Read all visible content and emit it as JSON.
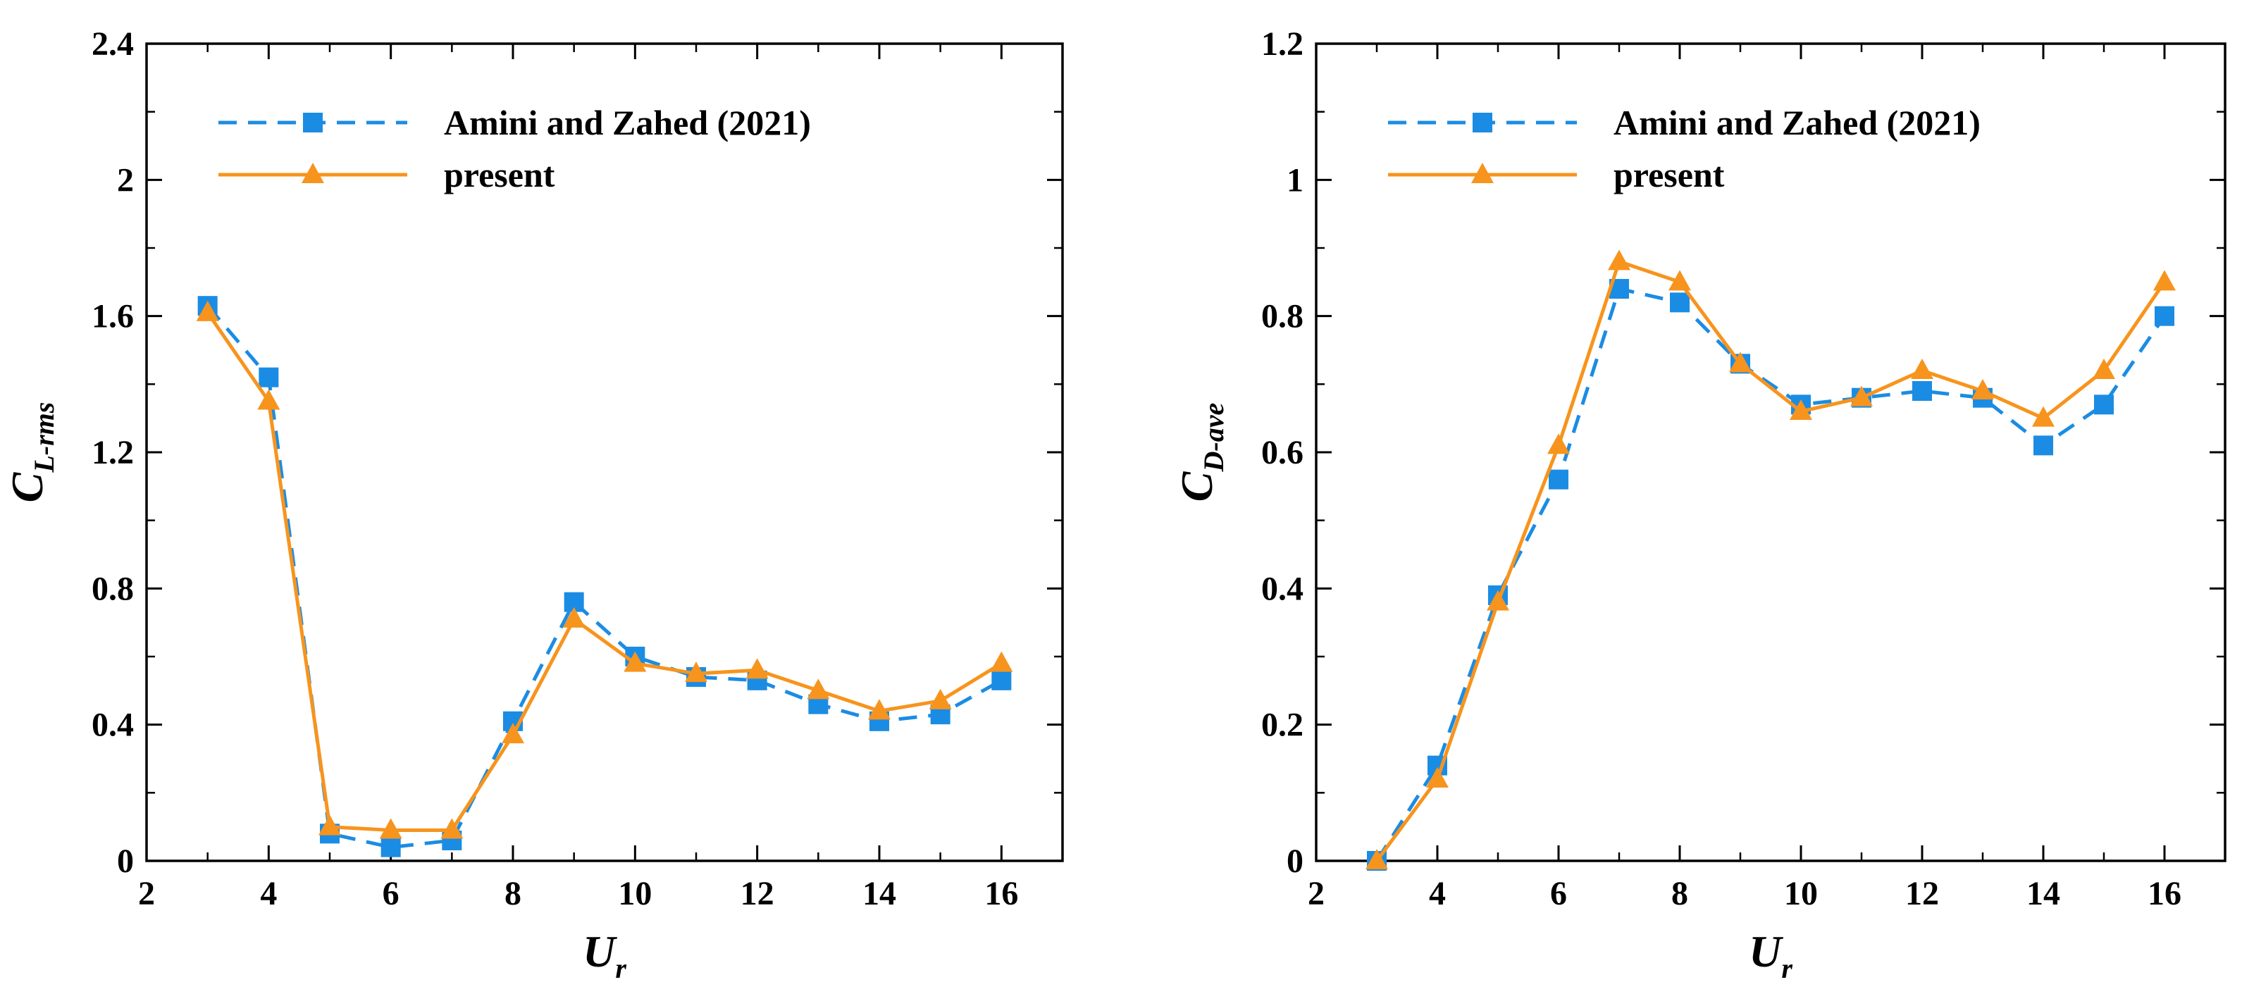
{
  "chart_data": [
    {
      "type": "line",
      "xlabel": "U",
      "xlabel_sub": "r",
      "ylabel": "C",
      "ylabel_sub": "L-rms",
      "xlim": [
        2,
        17
      ],
      "ylim": [
        0,
        2.4
      ],
      "xticks": [
        2,
        4,
        6,
        8,
        10,
        12,
        14,
        16
      ],
      "xtick_labels": [
        "2",
        "4",
        "6",
        "8",
        "10",
        "12",
        "14",
        "16"
      ],
      "yticks": [
        0,
        0.4,
        0.8,
        1.2,
        1.6,
        2,
        2.4
      ],
      "ytick_labels": [
        "0",
        "0.4",
        "0.8",
        "1.2",
        "1.6",
        "2",
        "2.4"
      ],
      "legend_position": "top-left",
      "series": [
        {
          "name": "Amini and Zahed (2021)",
          "style": "dashed",
          "marker": "square",
          "color": "#1b8ce3",
          "x": [
            3,
            4,
            5,
            6,
            7,
            8,
            9,
            10,
            11,
            12,
            13,
            14,
            15,
            16
          ],
          "y": [
            1.63,
            1.42,
            0.08,
            0.04,
            0.06,
            0.41,
            0.76,
            0.6,
            0.54,
            0.53,
            0.46,
            0.41,
            0.43,
            0.53
          ]
        },
        {
          "name": "present",
          "style": "solid",
          "marker": "triangle",
          "color": "#f7941d",
          "x": [
            3,
            4,
            5,
            6,
            7,
            8,
            9,
            10,
            11,
            12,
            13,
            14,
            15,
            16
          ],
          "y": [
            1.61,
            1.35,
            0.1,
            0.09,
            0.09,
            0.37,
            0.71,
            0.58,
            0.55,
            0.56,
            0.5,
            0.44,
            0.47,
            0.58
          ]
        }
      ]
    },
    {
      "type": "line",
      "xlabel": "U",
      "xlabel_sub": "r",
      "ylabel": "C",
      "ylabel_sub": "D-ave",
      "xlim": [
        2,
        17
      ],
      "ylim": [
        0,
        1.2
      ],
      "xticks": [
        2,
        4,
        6,
        8,
        10,
        12,
        14,
        16
      ],
      "xtick_labels": [
        "2",
        "4",
        "6",
        "8",
        "10",
        "12",
        "14",
        "16"
      ],
      "yticks": [
        0,
        0.2,
        0.4,
        0.6,
        0.8,
        1,
        1.2
      ],
      "ytick_labels": [
        "0",
        "0.2",
        "0.4",
        "0.6",
        "0.8",
        "1",
        "1.2"
      ],
      "legend_position": "top-left",
      "series": [
        {
          "name": "Amini and Zahed (2021)",
          "style": "dashed",
          "marker": "square",
          "color": "#1b8ce3",
          "x": [
            3,
            4,
            5,
            6,
            7,
            8,
            9,
            10,
            11,
            12,
            13,
            14,
            15,
            16
          ],
          "y": [
            0.0,
            0.14,
            0.39,
            0.56,
            0.84,
            0.82,
            0.73,
            0.67,
            0.68,
            0.69,
            0.68,
            0.61,
            0.67,
            0.8
          ]
        },
        {
          "name": "present",
          "style": "solid",
          "marker": "triangle",
          "color": "#f7941d",
          "x": [
            3,
            4,
            5,
            6,
            7,
            8,
            9,
            10,
            11,
            12,
            13,
            14,
            15,
            16
          ],
          "y": [
            0.0,
            0.12,
            0.38,
            0.61,
            0.88,
            0.85,
            0.73,
            0.66,
            0.68,
            0.72,
            0.69,
            0.65,
            0.72,
            0.85
          ]
        }
      ]
    }
  ]
}
